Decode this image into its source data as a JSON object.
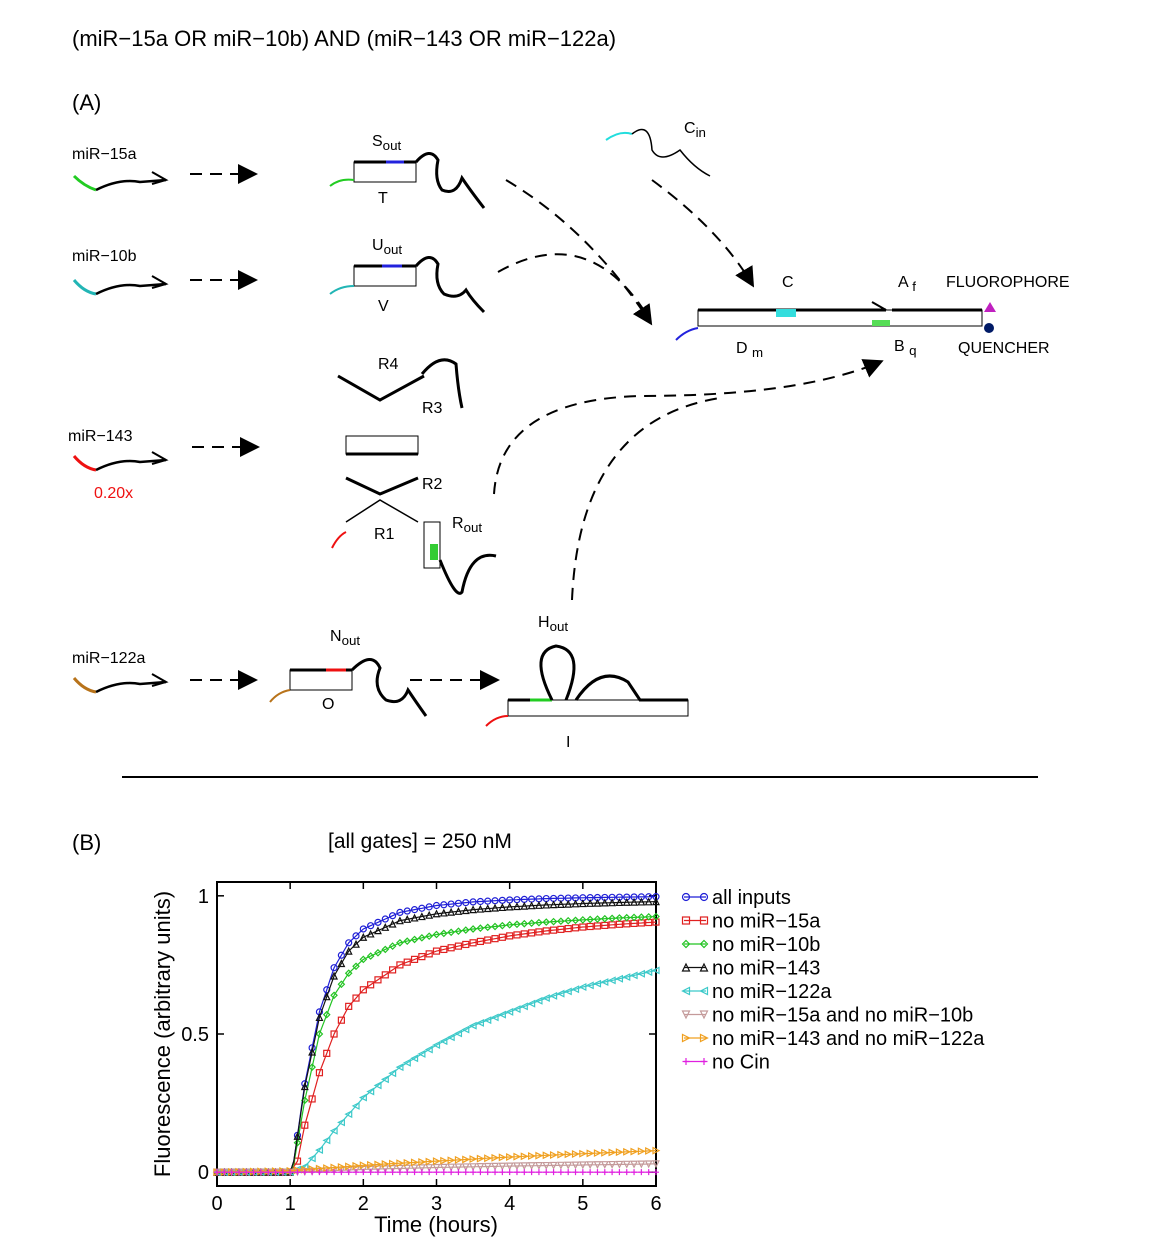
{
  "figure_title": "(miR−15a OR miR−10b) AND (miR−143 OR miR−122a)",
  "panel_a": {
    "label": "(A)",
    "inputs": [
      {
        "name": "miR−15a",
        "color": "#22cc22"
      },
      {
        "name": "miR−10b",
        "color": "#22b5b5"
      },
      {
        "name": "miR−143",
        "color": "#ee1111",
        "note": "0.20x"
      },
      {
        "name": "miR−122a",
        "color": "#b8731a"
      }
    ],
    "gates": {
      "S_out": "S",
      "S_sub": "out",
      "T": "T",
      "U_out": "U",
      "U_sub": "out",
      "V": "V",
      "C_in": "C",
      "C_in_sub": "in",
      "C": "C",
      "A_f": "A",
      "A_f_sub": "f",
      "D_m": "D",
      "D_m_sub": "m",
      "B_q": "B",
      "B_q_sub": "q",
      "fluorophore": "FLUOROPHORE",
      "quencher": "QUENCHER",
      "R4": "R4",
      "R3": "R3",
      "R2": "R2",
      "R1": "R1",
      "R_out": "R",
      "R_out_sub": "out",
      "N_out": "N",
      "N_out_sub": "out",
      "O": "O",
      "H_out": "H",
      "H_out_sub": "out",
      "I": "I"
    }
  },
  "panel_b": {
    "label": "(B)"
  },
  "chart_data": {
    "type": "line",
    "title": "[all gates] = 250 nM",
    "xlabel": "Time (hours)",
    "ylabel": "Fluorescence (arbitrary units)",
    "xlim": [
      0,
      6
    ],
    "ylim": [
      -0.05,
      1.05
    ],
    "xticks": [
      0,
      1,
      2,
      3,
      4,
      5,
      6
    ],
    "yticks": [
      0,
      0.5,
      1
    ],
    "ytick_labels": [
      "0",
      "0.5",
      "1"
    ],
    "legend_position": "right",
    "series": [
      {
        "name": "all inputs",
        "color": "#1f1fd6",
        "marker": "circle",
        "x": [
          0,
          1,
          1.05,
          1.2,
          1.4,
          1.6,
          1.8,
          2,
          2.5,
          3,
          3.5,
          4,
          4.5,
          5,
          5.5,
          6
        ],
        "y": [
          0,
          0,
          0.04,
          0.32,
          0.58,
          0.74,
          0.83,
          0.88,
          0.94,
          0.965,
          0.978,
          0.985,
          0.99,
          0.993,
          0.995,
          0.997
        ]
      },
      {
        "name": "no miR−15a",
        "color": "#e02020",
        "marker": "square",
        "x": [
          0,
          1,
          1.1,
          1.2,
          1.4,
          1.6,
          1.8,
          2,
          2.5,
          3,
          3.5,
          4,
          4.5,
          5,
          5.5,
          6
        ],
        "y": [
          0,
          0,
          0.04,
          0.17,
          0.36,
          0.5,
          0.6,
          0.66,
          0.75,
          0.8,
          0.83,
          0.855,
          0.873,
          0.887,
          0.897,
          0.905
        ]
      },
      {
        "name": "no miR−10b",
        "color": "#22c322",
        "marker": "diamond",
        "x": [
          0,
          1,
          1.05,
          1.2,
          1.4,
          1.6,
          1.8,
          2,
          2.5,
          3,
          3.5,
          4,
          4.5,
          5,
          5.5,
          6
        ],
        "y": [
          0,
          0,
          0.03,
          0.26,
          0.5,
          0.64,
          0.72,
          0.77,
          0.83,
          0.86,
          0.88,
          0.895,
          0.905,
          0.913,
          0.92,
          0.925
        ]
      },
      {
        "name": "no miR−143",
        "color": "#111111",
        "marker": "triangle-up",
        "x": [
          0,
          1,
          1.05,
          1.2,
          1.4,
          1.6,
          1.8,
          2,
          2.5,
          3,
          3.5,
          4,
          4.5,
          5,
          5.5,
          6
        ],
        "y": [
          0,
          0,
          0.04,
          0.31,
          0.56,
          0.71,
          0.8,
          0.85,
          0.91,
          0.935,
          0.95,
          0.96,
          0.967,
          0.972,
          0.976,
          0.979
        ]
      },
      {
        "name": "no miR−122a",
        "color": "#3cc9c9",
        "marker": "triangle-left",
        "x": [
          0,
          1,
          1.2,
          1.4,
          1.6,
          1.8,
          2,
          2.5,
          3,
          3.5,
          4,
          4.5,
          5,
          5.5,
          6
        ],
        "y": [
          0,
          0,
          0.02,
          0.08,
          0.15,
          0.21,
          0.27,
          0.38,
          0.46,
          0.53,
          0.58,
          0.63,
          0.67,
          0.7,
          0.73
        ]
      },
      {
        "name": "no miR−15a and no miR−10b",
        "color": "#c49a9a",
        "marker": "triangle-down",
        "x": [
          0,
          1,
          1.5,
          2,
          3,
          4,
          5,
          6
        ],
        "y": [
          0,
          0,
          0.005,
          0.01,
          0.017,
          0.022,
          0.026,
          0.03
        ]
      },
      {
        "name": "no miR−143 and no miR−122a",
        "color": "#f0a020",
        "marker": "triangle-right",
        "x": [
          0,
          1,
          1.5,
          2,
          3,
          4,
          5,
          6
        ],
        "y": [
          0,
          0.005,
          0.015,
          0.025,
          0.04,
          0.055,
          0.067,
          0.078
        ]
      },
      {
        "name": "no Cin",
        "color": "#e020e0",
        "marker": "plus",
        "x": [
          0,
          1,
          2,
          3,
          4,
          5,
          6
        ],
        "y": [
          0,
          0,
          0,
          0,
          0,
          0,
          0
        ]
      }
    ]
  }
}
